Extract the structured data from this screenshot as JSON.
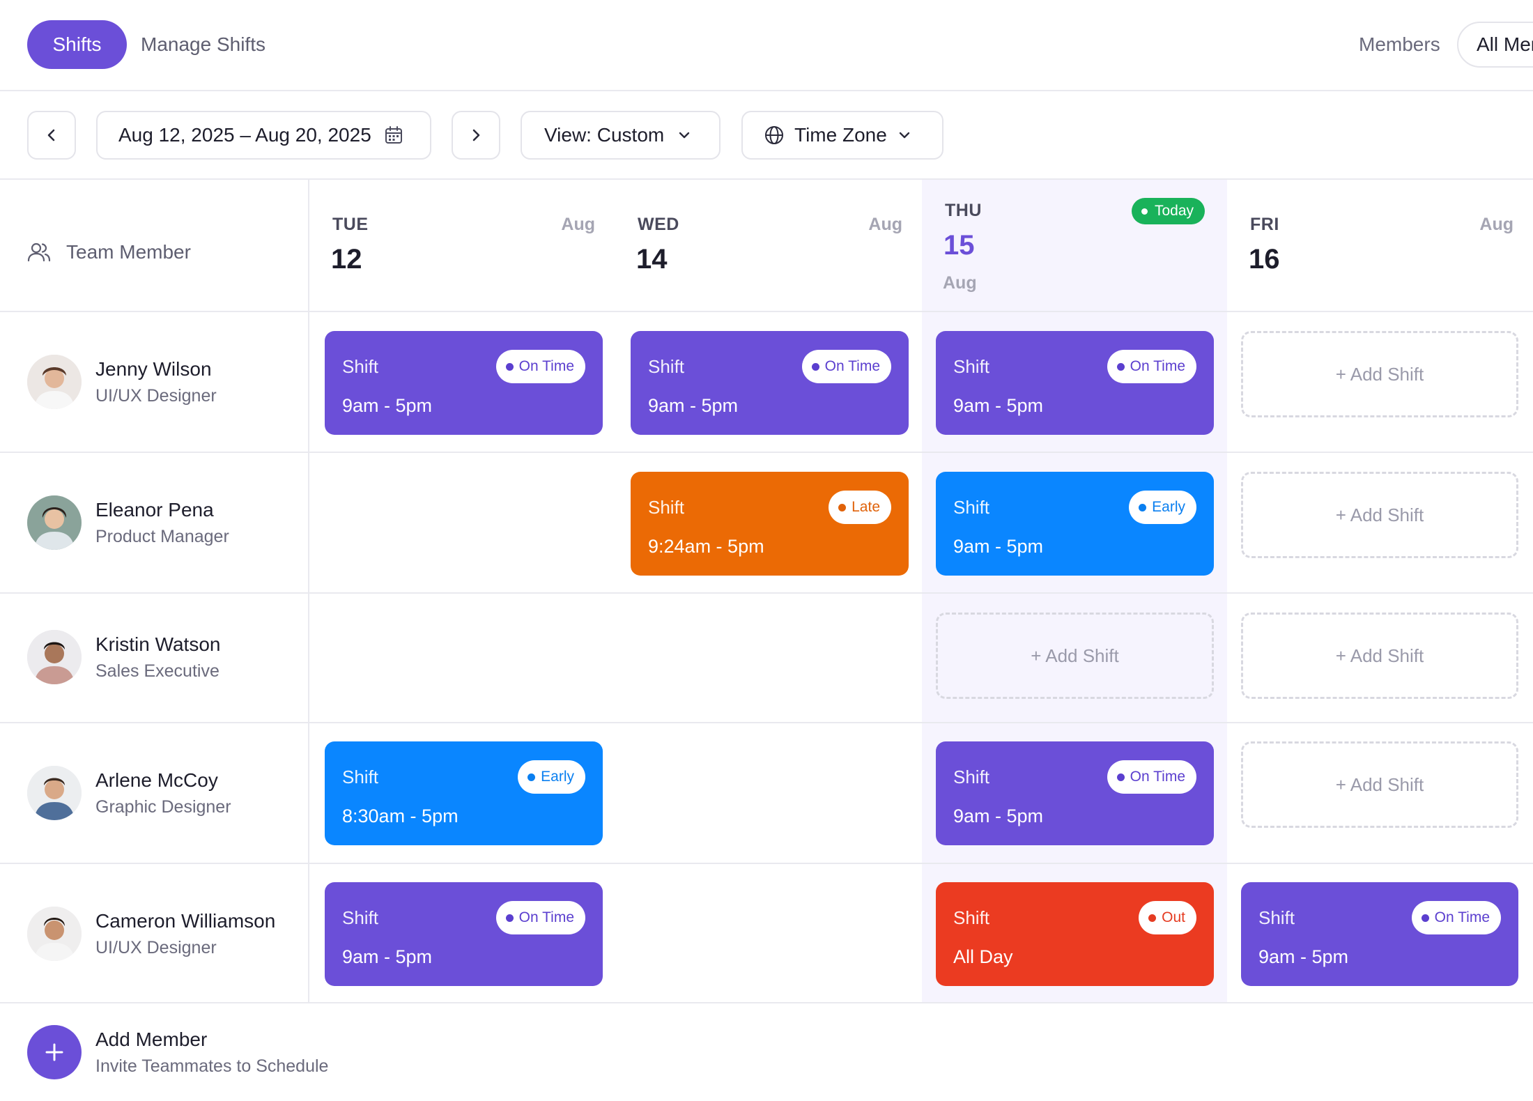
{
  "tabs": {
    "active": "Shifts",
    "other": "Manage Shifts"
  },
  "members_filter": {
    "label": "Members",
    "value": "All Members"
  },
  "toolbar": {
    "date_range": "Aug 12, 2025 – Aug 20, 2025",
    "view": "View: Custom",
    "timezone": "Time Zone"
  },
  "grid": {
    "member_header": "Team Member",
    "today_label": "Today",
    "days": [
      {
        "dow": "TUE",
        "num": "12",
        "month": "Aug"
      },
      {
        "dow": "WED",
        "num": "14",
        "month": "Aug"
      },
      {
        "dow": "THU",
        "num": "15",
        "month": "Aug"
      },
      {
        "dow": "FRI",
        "num": "16",
        "month": "Aug"
      }
    ]
  },
  "members": [
    {
      "name": "Jenny Wilson",
      "role": "UI/UX Designer"
    },
    {
      "name": "Eleanor Pena",
      "role": "Product Manager"
    },
    {
      "name": "Kristin Watson",
      "role": "Sales Executive"
    },
    {
      "name": "Arlene McCoy",
      "role": "Graphic Designer"
    },
    {
      "name": "Cameron Williamson",
      "role": "UI/UX Designer"
    }
  ],
  "shift_label": "Shift",
  "add_shift_label": "+ Add Shift",
  "shifts": {
    "r0d0": {
      "time": "9am - 5pm",
      "status": "On Time"
    },
    "r0d1": {
      "time": "9am - 5pm",
      "status": "On Time"
    },
    "r0d2": {
      "time": "9am - 5pm",
      "status": "On Time"
    },
    "r1d1": {
      "time": "9:24am - 5pm",
      "status": "Late"
    },
    "r1d2": {
      "time": "9am - 5pm",
      "status": "Early"
    },
    "r3d0": {
      "time": "8:30am - 5pm",
      "status": "Early"
    },
    "r3d2": {
      "time": "9am - 5pm",
      "status": "On Time"
    },
    "r4d0": {
      "time": "9am - 5pm",
      "status": "On Time"
    },
    "r4d2": {
      "time": "All Day",
      "status": "Out"
    },
    "r4d3": {
      "time": "9am - 5pm",
      "status": "On Time"
    }
  },
  "status_colors": {
    "on_time": "#6b4fd8",
    "late": "#eb6a05",
    "early": "#0a86ff",
    "out": "#eb3b21",
    "today": "#19b25a"
  },
  "add_member": {
    "title": "Add Member",
    "subtitle": "Invite Teammates to Schedule"
  },
  "icons": {
    "prev": "chevron-left-icon",
    "next": "chevron-right-icon",
    "calendar": "calendar-icon",
    "dropdown": "chevron-down-icon",
    "globe": "globe-icon",
    "team": "users-icon",
    "add": "plus-icon"
  }
}
